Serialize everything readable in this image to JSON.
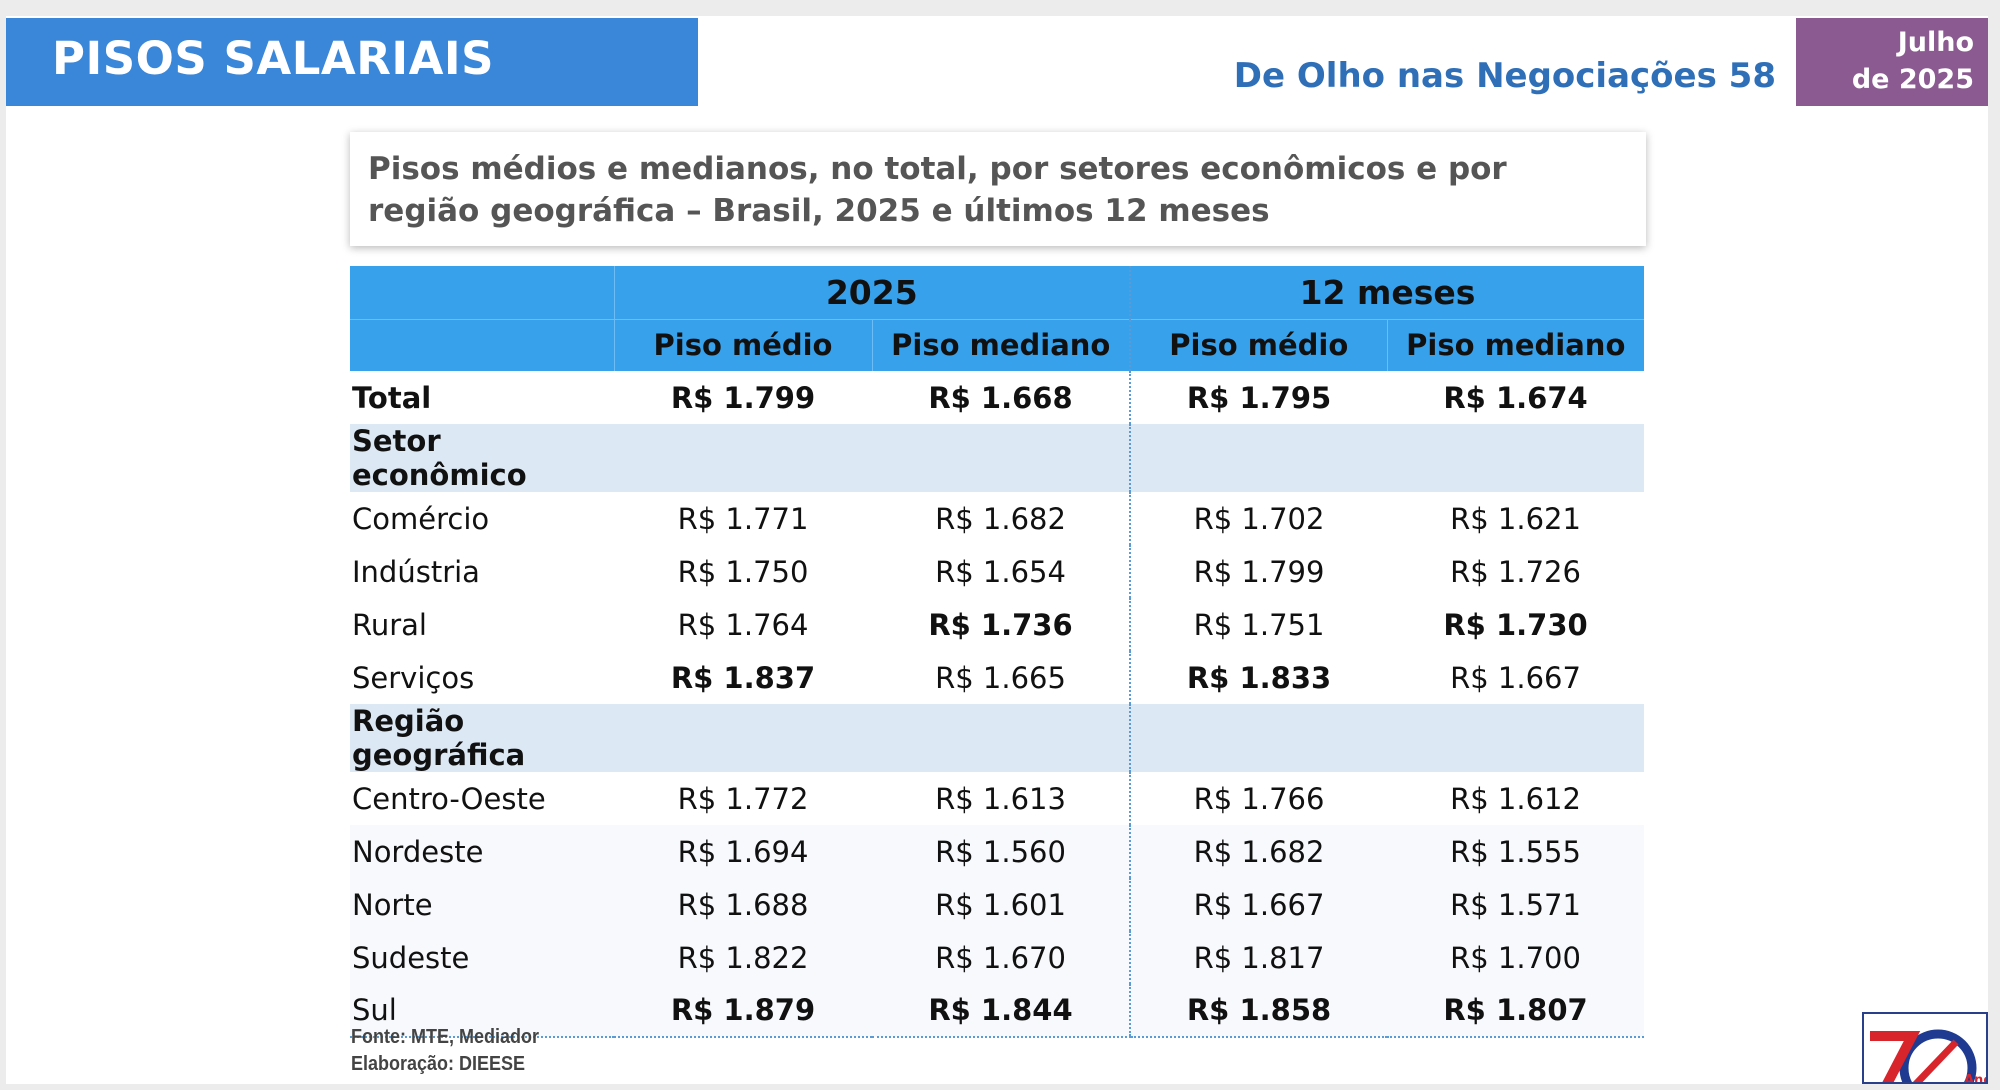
{
  "header": {
    "title": "PISOS SALARIAIS",
    "subtitle": "De Olho nas Negociações 58",
    "date_line1": "Julho",
    "date_line2": "de 2025",
    "banner_color": "#3a86d8",
    "date_color": "#8b5a90"
  },
  "caption": {
    "text": "Pisos médios e medianos, no total, por setores econômicos e por região geográfica – Brasil, 2025 e últimos 12 meses"
  },
  "table": {
    "group_headers": [
      "2025",
      "12 meses"
    ],
    "column_headers": [
      "Piso médio",
      "Piso mediano",
      "Piso médio",
      "Piso mediano"
    ],
    "total": {
      "label": "Total",
      "values": [
        "R$ 1.799",
        "R$ 1.668",
        "R$ 1.795",
        "R$ 1.674"
      ]
    },
    "sections": [
      {
        "title": "Setor econômico",
        "rows": [
          {
            "label": "Comércio",
            "values": [
              "R$ 1.771",
              "R$ 1.682",
              "R$ 1.702",
              "R$ 1.621"
            ]
          },
          {
            "label": "Indústria",
            "values": [
              "R$ 1.750",
              "R$ 1.654",
              "R$ 1.799",
              "R$ 1.726"
            ]
          },
          {
            "label": "Rural",
            "values": [
              "R$ 1.764",
              "R$ 1.736",
              "R$ 1.751",
              "R$ 1.730"
            ]
          },
          {
            "label": "Serviços",
            "values": [
              "R$ 1.837",
              "R$ 1.665",
              "R$ 1.833",
              "R$ 1.667"
            ]
          }
        ]
      },
      {
        "title": "Região geográfica",
        "rows": [
          {
            "label": "Centro-Oeste",
            "values": [
              "R$ 1.772",
              "R$ 1.613",
              "R$ 1.766",
              "R$ 1.612"
            ]
          },
          {
            "label": "Nordeste",
            "values": [
              "R$ 1.694",
              "R$ 1.560",
              "R$ 1.682",
              "R$ 1.555"
            ]
          },
          {
            "label": "Norte",
            "values": [
              "R$ 1.688",
              "R$ 1.601",
              "R$ 1.667",
              "R$ 1.571"
            ]
          },
          {
            "label": "Sudeste",
            "values": [
              "R$ 1.822",
              "R$ 1.670",
              "R$ 1.817",
              "R$ 1.700"
            ]
          },
          {
            "label": "Sul",
            "values": [
              "R$ 1.879",
              "R$ 1.844",
              "R$ 1.858",
              "R$ 1.807"
            ]
          }
        ]
      }
    ]
  },
  "footnotes": {
    "source": "Fonte: MTE, Mediador",
    "elaboration": "Elaboração: DIEESE"
  },
  "logo": {
    "number": "70",
    "word": "Anos",
    "icon": "dieese-70-anos-logo"
  }
}
